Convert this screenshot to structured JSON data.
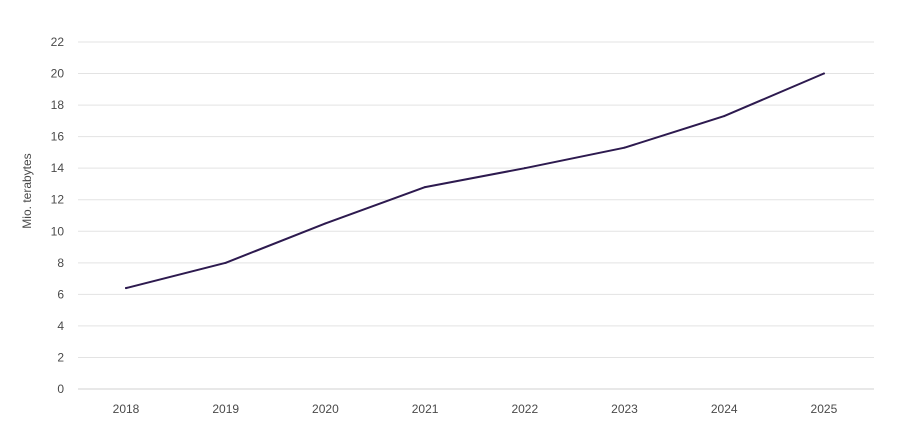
{
  "chart_data": {
    "type": "line",
    "title": "",
    "xlabel": "",
    "ylabel": "Mio. terabytes",
    "categories": [
      "2018",
      "2019",
      "2020",
      "2021",
      "2022",
      "2023",
      "2024",
      "2025"
    ],
    "series": [
      {
        "values": [
          6.4,
          8.0,
          10.5,
          12.8,
          14.0,
          15.3,
          17.3,
          20.0
        ],
        "color": "#2d1a4f"
      }
    ],
    "ylim": [
      0,
      22
    ],
    "yticks": [
      0,
      2,
      4,
      6,
      8,
      10,
      12,
      14,
      16,
      18,
      20,
      22
    ],
    "grid": true,
    "legend": "none"
  }
}
